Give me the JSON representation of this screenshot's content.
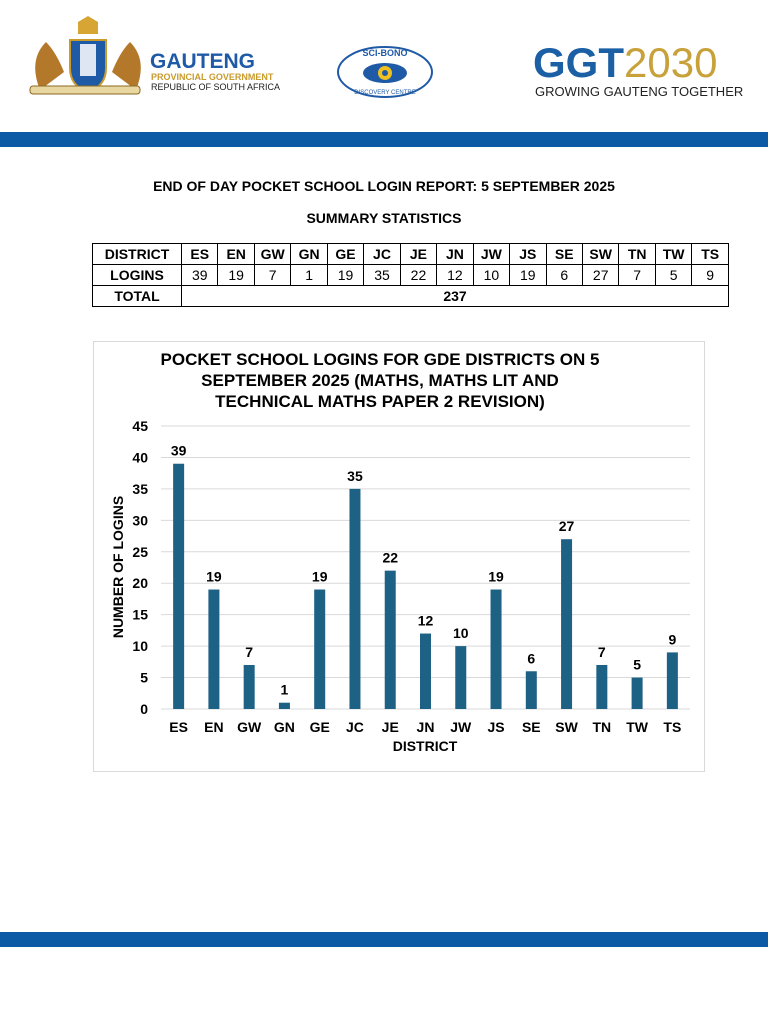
{
  "header": {
    "gauteng": {
      "name": "GAUTENG",
      "line1": "PROVINCIAL GOVERNMENT",
      "line2": "REPUBLIC OF SOUTH AFRICA"
    },
    "scibono": {
      "top": "SCI-BONO",
      "bottom": "DISCOVERY CENTRE"
    },
    "ggt": {
      "ggt": "GGT",
      "year": "2030",
      "slogan": "GROWING GAUTENG TOGETHER"
    }
  },
  "report": {
    "title": "END OF DAY POCKET SCHOOL LOGIN REPORT: 5 SEPTEMBER 2025",
    "subtitle": "SUMMARY STATISTICS"
  },
  "table": {
    "rows": [
      [
        "DISTRICT",
        "ES",
        "EN",
        "GW",
        "GN",
        "GE",
        "JC",
        "JE",
        "JN",
        "JW",
        "JS",
        "SE",
        "SW",
        "TN",
        "TW",
        "TS"
      ],
      [
        "LOGINS",
        39,
        19,
        7,
        1,
        19,
        35,
        22,
        12,
        10,
        19,
        6,
        27,
        7,
        5,
        9
      ],
      [
        "TOTAL",
        237
      ]
    ]
  },
  "chart_data": {
    "type": "bar",
    "title": "POCKET SCHOOL LOGINS FOR GDE DISTRICTS ON 5 SEPTEMBER 2025 (MATHS, MATHS LIT AND TECHNICAL MATHS PAPER 2 REVISION)",
    "x_label": "DISTRICT",
    "y_label": "NUMBER OF LOGINS",
    "categories": [
      "ES",
      "EN",
      "GW",
      "GN",
      "GE",
      "JC",
      "JE",
      "JN",
      "JW",
      "JS",
      "SE",
      "SW",
      "TN",
      "TW",
      "TS"
    ],
    "values": [
      39,
      19,
      7,
      1,
      19,
      35,
      22,
      12,
      10,
      19,
      6,
      27,
      7,
      5,
      9
    ],
    "color": "#1d6185",
    "ylim": [
      0,
      45
    ],
    "yticks": [
      0,
      5,
      10,
      15,
      20,
      25,
      30,
      35,
      40,
      45
    ],
    "grid": true,
    "value_labels_shown": true
  }
}
